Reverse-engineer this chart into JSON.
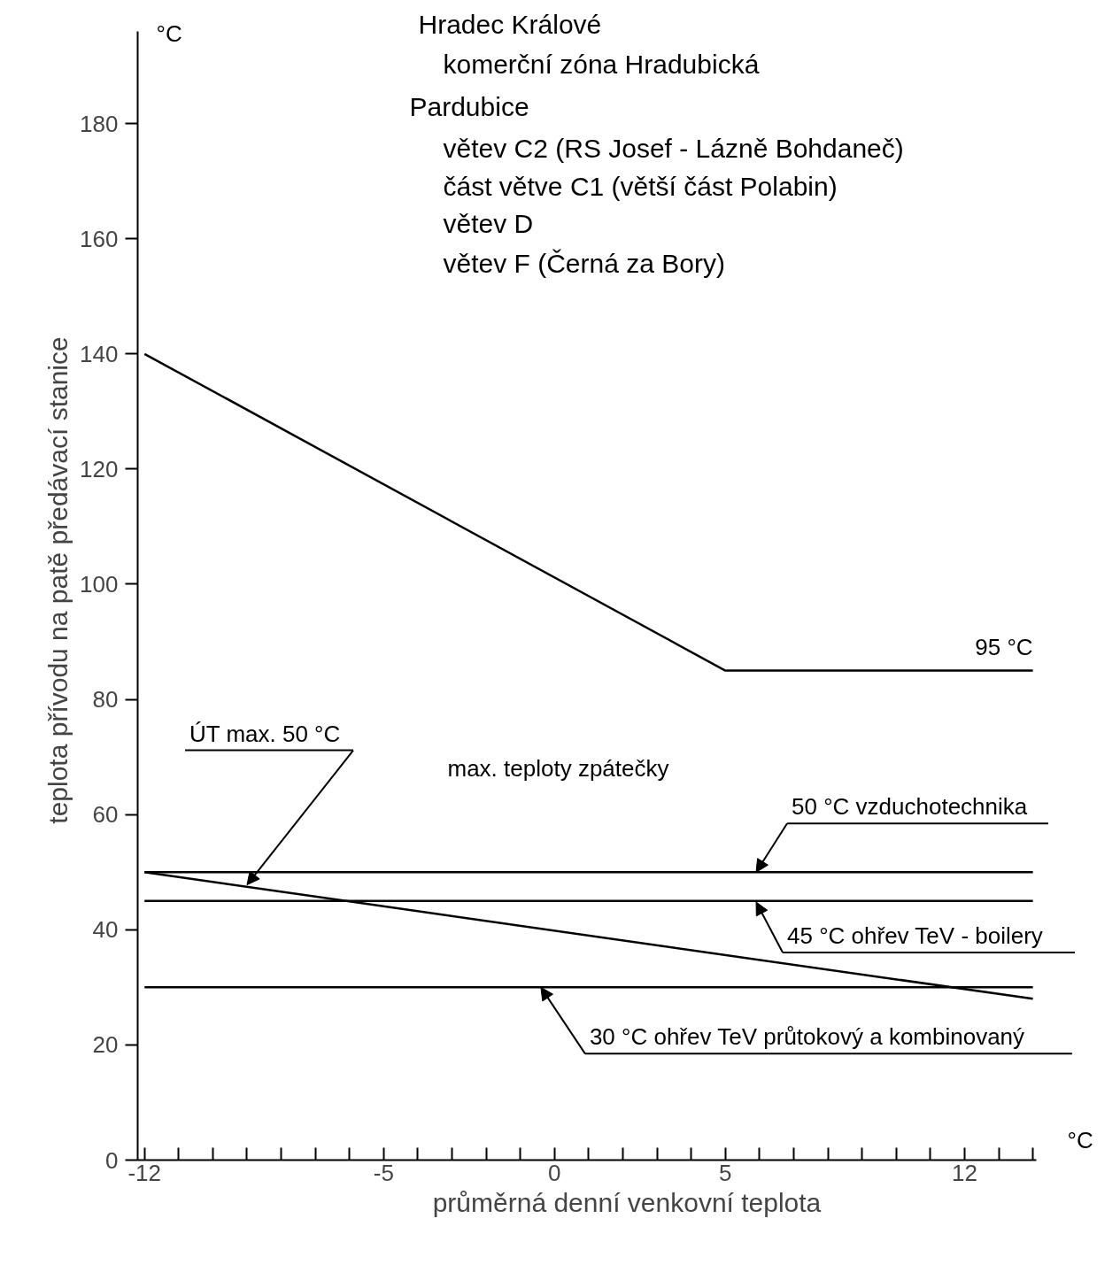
{
  "chart_data": {
    "type": "line",
    "title": "Hradec Králové",
    "xlabel": "průměrná denní venkovní teplota",
    "ylabel": "teplota přívodu na patě předávací stanice",
    "xlim": [
      -12.2,
      14.1
    ],
    "ylim": [
      0,
      196
    ],
    "xticks": [
      -12,
      {
        "value": -11,
        "label": null
      },
      {
        "value": -10,
        "label": null
      },
      {
        "value": -9,
        "label": null
      },
      {
        "value": -8,
        "label": null
      },
      {
        "value": -7,
        "label": null
      },
      {
        "value": -6,
        "label": null
      },
      -5,
      {
        "value": -4,
        "label": null
      },
      {
        "value": -3,
        "label": null
      },
      {
        "value": -2,
        "label": null
      },
      {
        "value": -1,
        "label": null
      },
      0,
      {
        "value": 1,
        "label": null
      },
      {
        "value": 2,
        "label": null
      },
      {
        "value": 3,
        "label": null
      },
      {
        "value": 4,
        "label": null
      },
      5,
      {
        "value": 6,
        "label": null
      },
      {
        "value": 7,
        "label": null
      },
      {
        "value": 8,
        "label": null
      },
      {
        "value": 9,
        "label": null
      },
      {
        "value": 10,
        "label": null
      },
      {
        "value": 11,
        "label": null
      },
      12,
      {
        "value": 13,
        "label": null
      },
      {
        "value": 14,
        "label": null
      }
    ],
    "yticks": [
      0,
      20,
      40,
      60,
      80,
      100,
      120,
      140,
      160,
      180
    ],
    "grid": false,
    "line_style": "solid",
    "series": [
      {
        "color": "#000000",
        "x": [
          -12,
          5,
          14
        ],
        "values": [
          140,
          85,
          85
        ]
      },
      {
        "color": "#000000",
        "x": [
          -12,
          14
        ],
        "values": [
          50,
          50
        ]
      },
      {
        "color": "#000000",
        "x": [
          -12,
          14
        ],
        "values": [
          45,
          45
        ]
      },
      {
        "color": "#000000",
        "x": [
          -12,
          14
        ],
        "values": [
          30,
          30
        ]
      },
      {
        "color": "#000000",
        "x": [
          -12,
          14
        ],
        "values": [
          50,
          28
        ]
      }
    ],
    "annotations": [
      "komerční zóna Hradubická",
      "Pardubice",
      "větev C2 (RS Josef - Lázně Bohdaneč)",
      "část větve C1 (větší část Polabin)",
      "větev D",
      "větev F (Černá za Bory)",
      "max. teploty zpátečky",
      "°C",
      "°C",
      {
        "text": "95 °C",
        "x": 14,
        "y": 85
      },
      {
        "text": "ÚT max. 50 °C",
        "x": -9,
        "y": 47.8
      },
      {
        "text": "50 °C vzduchotechnika",
        "x": 5.9,
        "y": 50
      },
      {
        "text": "45 °C ohřev TeV - boilery",
        "x": 5.9,
        "y": 44.8
      },
      {
        "text": "30 °C ohřev TeV průtokový a kombinovaný",
        "x": -0.4,
        "y": 30
      }
    ]
  }
}
